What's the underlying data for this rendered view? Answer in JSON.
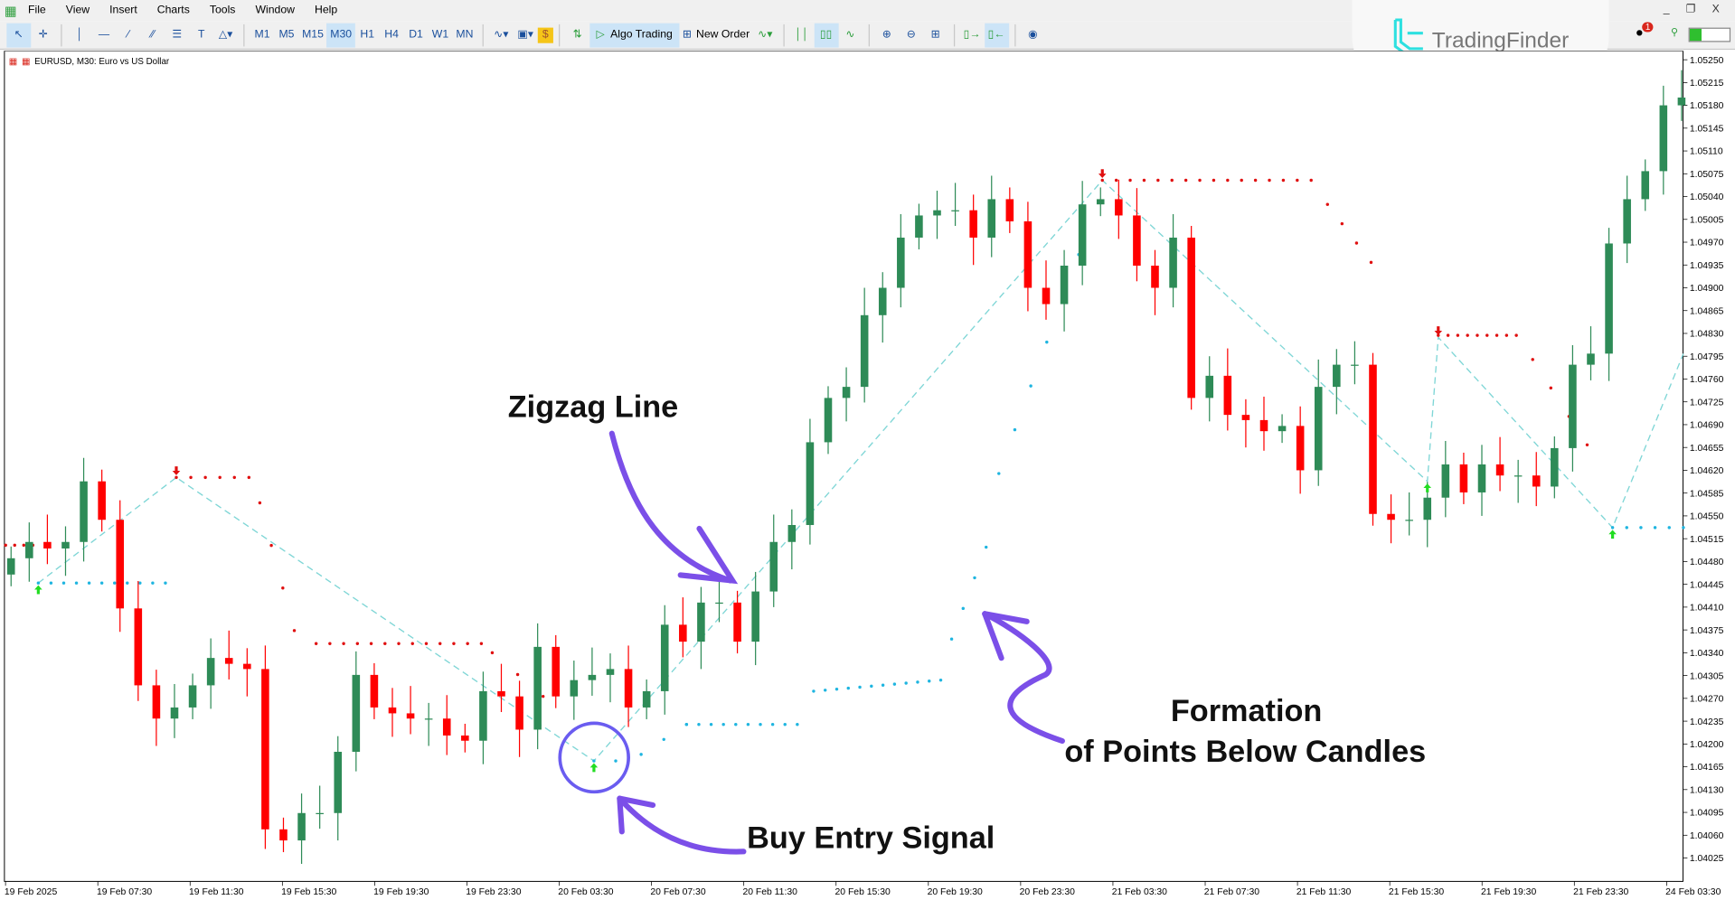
{
  "menu": [
    "File",
    "View",
    "Insert",
    "Charts",
    "Tools",
    "Window",
    "Help"
  ],
  "toolbar": {
    "timeframes": [
      "M1",
      "M5",
      "M15",
      "M30",
      "H1",
      "H4",
      "D1",
      "W1",
      "MN"
    ],
    "active_timeframe": "M30",
    "algo_trading": "Algo Trading",
    "new_order": "New Order",
    "notification_count": "1"
  },
  "logo": "TradingFinder",
  "chart_title": "EURUSD, M30:  Euro vs US Dollar",
  "annotations": {
    "zigzag": "Zigzag Line",
    "formation_1": "Formation",
    "formation_2": "of Points Below Candles",
    "buy": "Buy Entry Signal"
  },
  "colors": {
    "bull": "#2e8b57",
    "bear": "#ff0000",
    "zigzag": "#7fd6d6",
    "support_dots": "#1fb5e0",
    "resistance_dots": "#e01010",
    "arrow_up": "#22dd22",
    "arrow_down": "#e01010",
    "annotation": "#7b4fe8"
  },
  "chart_data": {
    "type": "candlestick",
    "symbol": "EURUSD",
    "timeframe": "M30",
    "price_ticks": [
      "1.05250",
      "1.05215",
      "1.05180",
      "1.05145",
      "1.05110",
      "1.05075",
      "1.05040",
      "1.05005",
      "1.04970",
      "1.04935",
      "1.04900",
      "1.04865",
      "1.04830",
      "1.04795",
      "1.04760",
      "1.04725",
      "1.04690",
      "1.04655",
      "1.04620",
      "1.04585",
      "1.04550",
      "1.04515",
      "1.04480",
      "1.04445",
      "1.04410",
      "1.04375",
      "1.04340",
      "1.04305",
      "1.04270",
      "1.04235",
      "1.04200",
      "1.04165",
      "1.04130",
      "1.04095",
      "1.04060",
      "1.04025"
    ],
    "time_ticks": [
      "19 Feb 2025",
      "19 Feb 07:30",
      "19 Feb 11:30",
      "19 Feb 15:30",
      "19 Feb 19:30",
      "19 Feb 23:30",
      "20 Feb 03:30",
      "20 Feb 07:30",
      "20 Feb 11:30",
      "20 Feb 15:30",
      "20 Feb 19:30",
      "20 Feb 23:30",
      "21 Feb 03:30",
      "21 Feb 07:30",
      "21 Feb 11:30",
      "21 Feb 15:30",
      "21 Feb 19:30",
      "21 Feb 23:30",
      "24 Feb 03:30"
    ],
    "ylim": [
      1.04,
      1.0527
    ],
    "first_open": 1.0446,
    "closes": [
      1.04485,
      1.0451,
      1.045,
      1.0451,
      1.04603,
      1.04544,
      1.04408,
      1.0429,
      1.04239,
      1.04256,
      1.0429,
      1.04332,
      1.04323,
      1.04315,
      1.04069,
      1.04052,
      1.04094,
      1.04094,
      1.04188,
      1.04306,
      1.04256,
      1.04247,
      1.04239,
      1.04239,
      1.04213,
      1.04205,
      1.04281,
      1.04273,
      1.04222,
      1.04349,
      1.04273,
      1.04298,
      1.04306,
      1.04315,
      1.04256,
      1.04281,
      1.04383,
      1.04357,
      1.04417,
      1.04417,
      1.04357,
      1.04434,
      1.0451,
      1.04536,
      1.04663,
      1.04731,
      1.04748,
      1.04858,
      1.049,
      1.04977,
      1.05011,
      1.05019,
      1.05019,
      1.04977,
      1.05036,
      1.05002,
      1.049,
      1.04875,
      1.04934,
      1.05028,
      1.05036,
      1.05011,
      1.04934,
      1.049,
      1.04977,
      1.04731,
      1.04765,
      1.04705,
      1.04697,
      1.0468,
      1.04688,
      1.0462,
      1.04748,
      1.04782,
      1.04782,
      1.04553,
      1.04544,
      1.04544,
      1.04578,
      1.04629,
      1.04586,
      1.04629,
      1.04612,
      1.04612,
      1.04595,
      1.04654,
      1.04782,
      1.04799,
      1.04968,
      1.05036,
      1.05079,
      1.0518,
      1.05192
    ],
    "zigzag": [
      [
        1.5,
        1.04447
      ],
      [
        9.1,
        1.04609
      ],
      [
        32.1,
        1.04174
      ],
      [
        60.1,
        1.05065
      ],
      [
        78.0,
        1.04603
      ],
      [
        78.6,
        1.04824
      ],
      [
        88.2,
        1.04532
      ],
      [
        92.1,
        1.04799
      ]
    ],
    "resistance_dots": [
      [
        -0.3,
        1.04505,
        1.2,
        1.04505,
        4
      ],
      [
        9.1,
        1.04609,
        13.1,
        1.04609,
        6
      ],
      [
        13.7,
        1.0457,
        15.6,
        1.04374,
        4
      ],
      [
        16.8,
        1.04354,
        25.9,
        1.04354,
        13
      ],
      [
        26.5,
        1.0434,
        29.3,
        1.04273,
        3
      ],
      [
        60.1,
        1.05065,
        71.6,
        1.05065,
        16
      ],
      [
        72.5,
        1.05028,
        74.9,
        1.04939,
        4
      ],
      [
        78.6,
        1.04827,
        82.9,
        1.04827,
        9
      ],
      [
        83.8,
        1.0479,
        86.8,
        1.04659,
        4
      ]
    ],
    "support_dots": [
      [
        1.5,
        1.04447,
        8.5,
        1.04447,
        11
      ],
      [
        32.1,
        1.04174,
        33.3,
        1.04174,
        2
      ],
      [
        34.7,
        1.04184,
        37.2,
        1.0423,
        3
      ],
      [
        37.2,
        1.0423,
        43.3,
        1.0423,
        10
      ],
      [
        44.2,
        1.04281,
        51.2,
        1.04298,
        12
      ],
      [
        51.8,
        1.04361,
        53.7,
        1.04502,
        4
      ],
      [
        54.4,
        1.04615,
        58.8,
        1.04951,
        6
      ],
      [
        88.2,
        1.04532,
        92.1,
        1.04532,
        6
      ]
    ],
    "buy_arrows": [
      [
        1.5,
        1.04447
      ],
      [
        32.1,
        1.04174
      ],
      [
        78.0,
        1.04603
      ],
      [
        88.2,
        1.04532
      ]
    ],
    "sell_arrows": [
      [
        9.1,
        1.04609
      ],
      [
        60.1,
        1.05065
      ],
      [
        78.6,
        1.04824
      ]
    ]
  }
}
